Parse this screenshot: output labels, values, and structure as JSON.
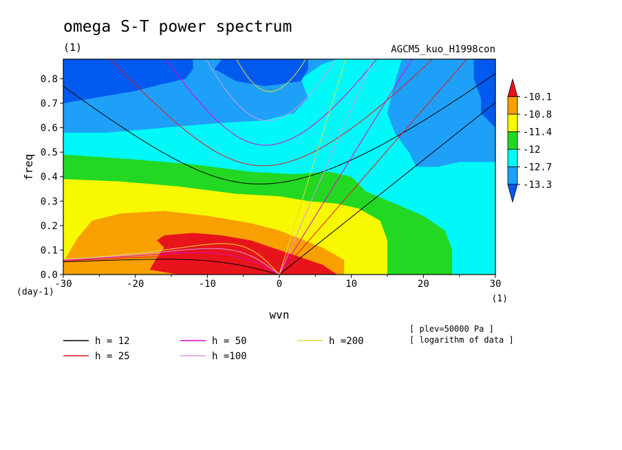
{
  "chart_data": {
    "type": "heatmap",
    "title": "omega S-T power spectrum",
    "subtitle": "(1)",
    "run_label": "AGCM5_kuo_H1998con",
    "xlabel": "wvn",
    "ylabel": "freq",
    "x_unit": "(1)",
    "y_unit": "(day-1)",
    "xlim": [
      -30,
      30
    ],
    "ylim": [
      0,
      0.88
    ],
    "x_ticks": [
      "-30",
      "-20",
      "-10",
      "0",
      "10",
      "20",
      "30"
    ],
    "x_tick_values": [
      -30,
      -20,
      -10,
      0,
      10,
      20,
      30
    ],
    "y_ticks": [
      "0.0",
      "0.1",
      "0.2",
      "0.3",
      "0.4",
      "0.5",
      "0.6",
      "0.7",
      "0.8"
    ],
    "y_tick_values": [
      0,
      0.1,
      0.2,
      0.3,
      0.4,
      0.5,
      0.6,
      0.7,
      0.8
    ],
    "colorbar": {
      "labels": [
        "-10.1",
        "-10.8",
        "-11.4",
        "-12",
        "-12.7",
        "-13.3"
      ],
      "levels": [
        -10.1,
        -10.8,
        -11.4,
        -12,
        -12.7,
        -13.3
      ],
      "colors": [
        "#e8141c",
        "#f8a000",
        "#f8f800",
        "#23d823",
        "#00f8f8",
        "#1ea0f8",
        "#005af0"
      ]
    },
    "fill_colors": {
      "deep_blue": "#005af0",
      "blue": "#1ea0f8",
      "cyan": "#00f8f8",
      "green": "#23d823",
      "yellow": "#f8f800",
      "orange": "#f8a000",
      "red": "#e8141c"
    },
    "notes": [
      "[ plev=50000 Pa ]",
      "[ logarithm of data ]"
    ],
    "dispersion_curves": [
      {
        "name": "h = 12",
        "h": 12,
        "color": "#000000"
      },
      {
        "name": "h = 25",
        "h": 25,
        "color": "#e8141c"
      },
      {
        "name": "h = 50",
        "h": 50,
        "color": "#e600c8"
      },
      {
        "name": "h =100",
        "h": 100,
        "color": "#dc96e6"
      },
      {
        "name": "h =200",
        "h": 200,
        "color": "#e6dc32"
      }
    ]
  }
}
